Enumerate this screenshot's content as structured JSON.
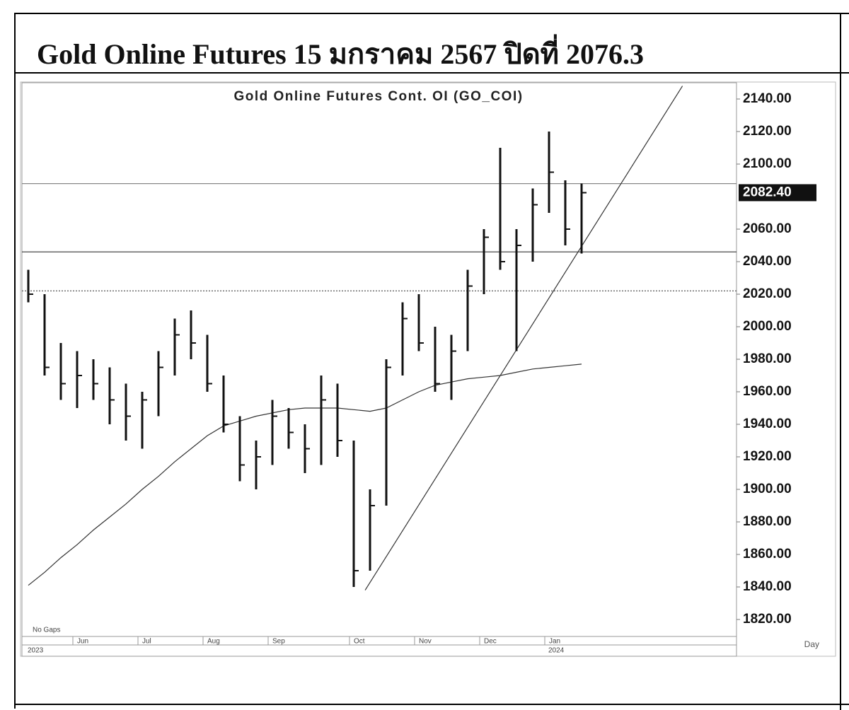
{
  "header": {
    "title": "Gold Online Futures 15 มกราคม 2567 ปิดที่ 2076.3"
  },
  "chart_data": {
    "type": "ohlc",
    "title": "Gold Online Futures Cont. OI (GO_COI)",
    "note": "No Gaps",
    "period": "Day",
    "years": [
      "2023",
      "2024"
    ],
    "categories": [
      null,
      null,
      null,
      "Jun",
      null,
      null,
      null,
      "Jul",
      null,
      null,
      null,
      "Aug",
      null,
      null,
      null,
      "Sep",
      null,
      null,
      null,
      null,
      "Oct",
      null,
      null,
      null,
      "Nov",
      null,
      null,
      null,
      "Dec",
      null,
      null,
      null,
      "Jan",
      null,
      null
    ],
    "high": [
      2035,
      2020,
      1990,
      1985,
      1980,
      1975,
      1965,
      1960,
      1985,
      2005,
      2010,
      1995,
      1970,
      1945,
      1930,
      1955,
      1950,
      1940,
      1970,
      1965,
      1930,
      1900,
      1980,
      2015,
      2020,
      2000,
      1995,
      2035,
      2060,
      2110,
      2060,
      2085,
      2120,
      2090,
      2088
    ],
    "low": [
      2015,
      1970,
      1955,
      1950,
      1955,
      1940,
      1930,
      1925,
      1945,
      1970,
      1980,
      1960,
      1935,
      1905,
      1900,
      1915,
      1925,
      1910,
      1915,
      1920,
      1840,
      1850,
      1890,
      1970,
      1985,
      1960,
      1955,
      1985,
      2020,
      2035,
      1985,
      2040,
      2070,
      2050,
      2045
    ],
    "close": [
      2020,
      1975,
      1965,
      1970,
      1965,
      1955,
      1945,
      1955,
      1975,
      1995,
      1990,
      1965,
      1940,
      1915,
      1920,
      1945,
      1935,
      1925,
      1955,
      1930,
      1850,
      1890,
      1975,
      2005,
      1990,
      1965,
      1985,
      2025,
      2055,
      2040,
      2050,
      2075,
      2095,
      2060,
      2082.4
    ],
    "color": "#111111",
    "lines": [
      {
        "color": "#333333",
        "values": [
          1841,
          1849,
          1858,
          1866,
          1875,
          1883,
          1891,
          1900,
          1908,
          1917,
          1925,
          1933,
          1939,
          1942,
          1945,
          1947,
          1949,
          1950,
          1950,
          1950,
          1949,
          1948,
          1950,
          1955,
          1960,
          1964,
          1966,
          1968,
          1969,
          1970,
          1972,
          1974,
          1975,
          1976,
          1977
        ]
      }
    ],
    "reference_lines": [
      {
        "value": 2088,
        "color": "#888888",
        "style": "solid"
      },
      {
        "value": 2046,
        "color": "#333333",
        "style": "solid"
      },
      {
        "value": 2022,
        "color": "#555555",
        "style": "dotted"
      }
    ],
    "trend_lines": [
      {
        "x": [
          20.7,
          40.2
        ],
        "y": [
          1838,
          2148
        ],
        "color": "#333333"
      }
    ],
    "last_price": {
      "value": 2082.4,
      "label": "2082.40"
    },
    "ylim": [
      1810,
      2150
    ],
    "yticks": [
      {
        "value": 1820,
        "label": "1820.00"
      },
      {
        "value": 1840,
        "label": "1840.00"
      },
      {
        "value": 1860,
        "label": "1860.00"
      },
      {
        "value": 1880,
        "label": "1880.00"
      },
      {
        "value": 1900,
        "label": "1900.00"
      },
      {
        "value": 1920,
        "label": "1920.00"
      },
      {
        "value": 1940,
        "label": "1940.00"
      },
      {
        "value": 1960,
        "label": "1960.00"
      },
      {
        "value": 1980,
        "label": "1980.00"
      },
      {
        "value": 2000,
        "label": "2000.00"
      },
      {
        "value": 2020,
        "label": "2020.00"
      },
      {
        "value": 2040,
        "label": "2040.00"
      },
      {
        "value": 2060,
        "label": "2060.00"
      },
      {
        "value": 2100,
        "label": "2100.00"
      },
      {
        "value": 2120,
        "label": "2120.00"
      },
      {
        "value": 2140,
        "label": "2140.00"
      }
    ]
  }
}
